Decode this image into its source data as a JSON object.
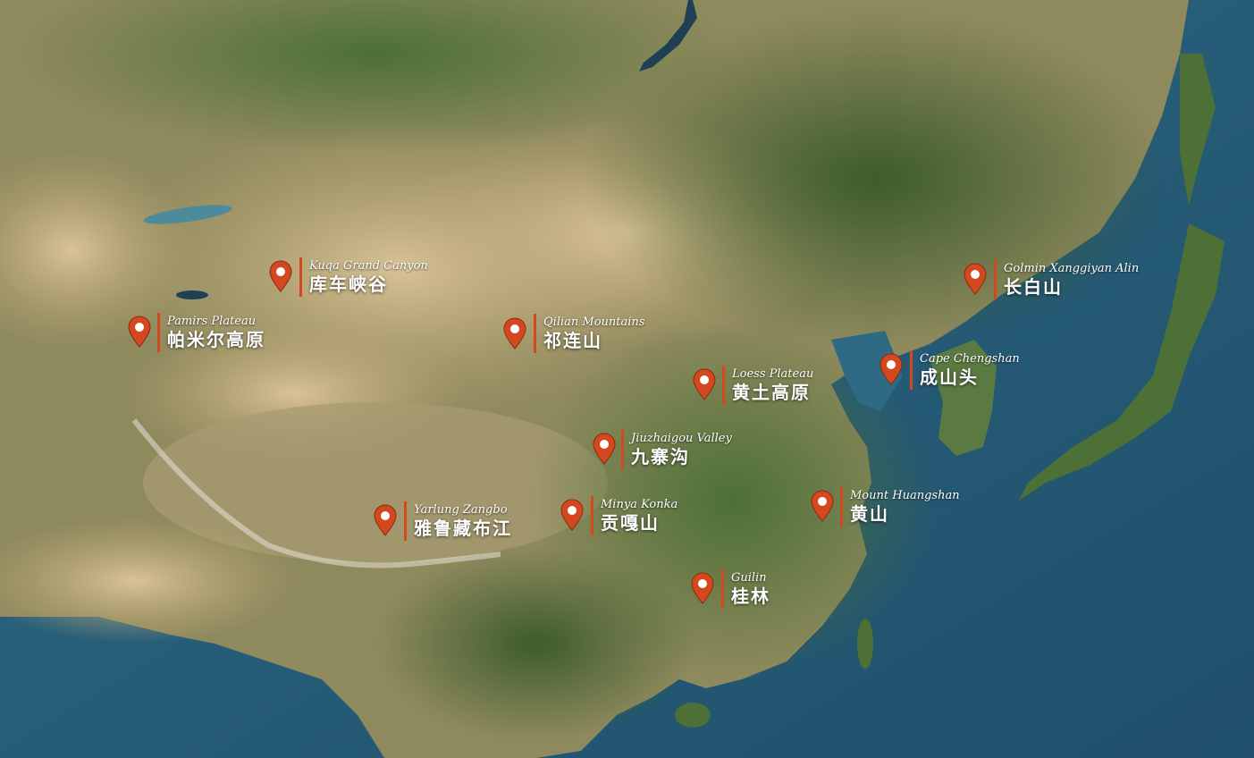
{
  "colors": {
    "marker": "#d4481f",
    "divider": "#d4481f",
    "label_text": "#ffffff"
  },
  "marker_icon": "map-pin-icon",
  "places": [
    {
      "id": "kuqa",
      "en": "Kuqa Grand Canyon",
      "zh": "库车峡谷"
    },
    {
      "id": "pamirs",
      "en": "Pamirs Plateau",
      "zh": "帕米尔高原"
    },
    {
      "id": "qilian",
      "en": "Qilian Mountains",
      "zh": "祁连山"
    },
    {
      "id": "loess",
      "en": "Loess Plateau",
      "zh": "黄土高原"
    },
    {
      "id": "jiuzhaigou",
      "en": "Jiuzhaigou Valley",
      "zh": "九寨沟"
    },
    {
      "id": "yarlung",
      "en": "Yarlung Zangbo",
      "zh": "雅鲁藏布江"
    },
    {
      "id": "minya",
      "en": "Minya Konka",
      "zh": "贡嘎山"
    },
    {
      "id": "guilin",
      "en": "Guilin",
      "zh": "桂林"
    },
    {
      "id": "huangshan",
      "en": "Mount Huangshan",
      "zh": "黄山"
    },
    {
      "id": "chengshan",
      "en": "Cape Chengshan",
      "zh": "成山头"
    },
    {
      "id": "changbai",
      "en": "Golmin Xanggiyan Alin",
      "zh": "长白山"
    }
  ]
}
